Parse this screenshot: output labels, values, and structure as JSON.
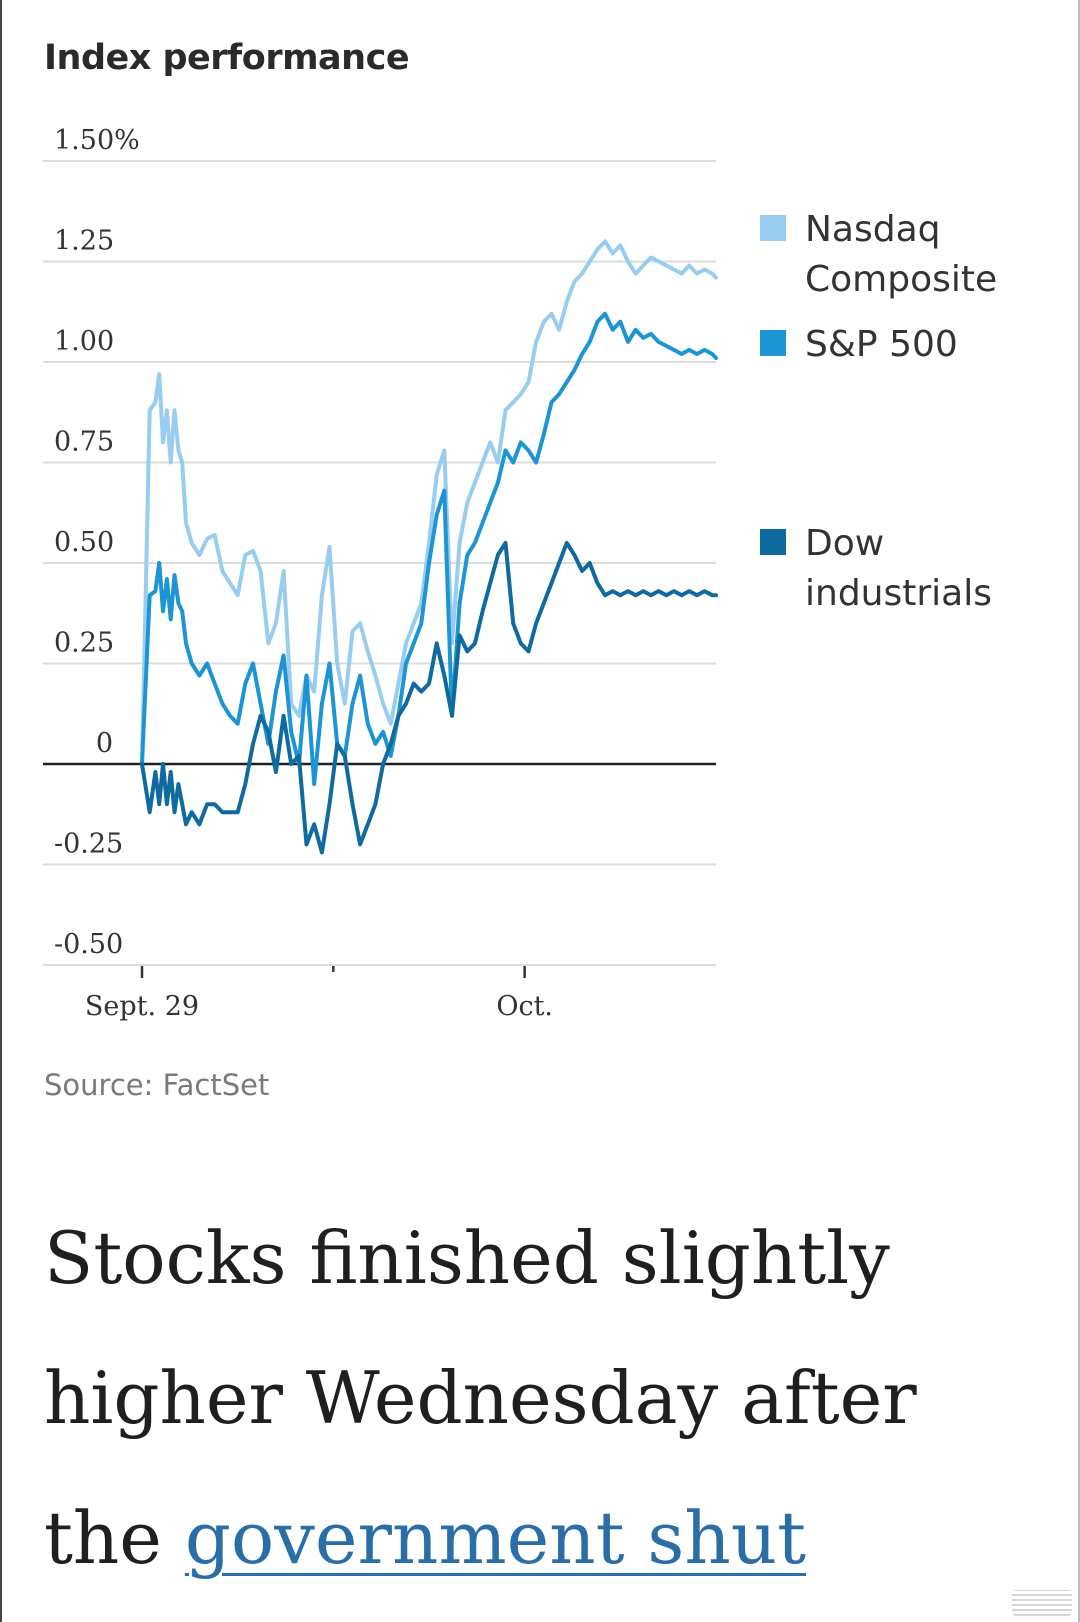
{
  "page": {
    "source": "Source: FactSet",
    "headline_pre": "Stocks finished slightly higher Wednesday after the ",
    "headline_link": "government shut"
  },
  "chart_data": {
    "type": "line",
    "title": "Index performance",
    "y_tick_labels": [
      "1.50%",
      "1.25",
      "1.00",
      "0.75",
      "0.50",
      "0.25",
      "0",
      "-0.25",
      "-0.50"
    ],
    "y_ticks": [
      1.5,
      1.25,
      1.0,
      0.75,
      0.5,
      0.25,
      0,
      -0.25,
      -0.5
    ],
    "ylim": [
      -0.5,
      1.5
    ],
    "xlim": [
      0,
      1.5
    ],
    "x_ticks": [
      {
        "label": "Sept. 29",
        "x": 0
      },
      {
        "label": "",
        "x": 0.5
      },
      {
        "label": "Oct.",
        "x": 1.0
      }
    ],
    "xlabel": "",
    "ylabel": "",
    "legend_position": "right",
    "series": [
      {
        "name": "Nasdaq Composite",
        "legend_label": [
          "Nasdaq",
          "Composite"
        ],
        "color": "#99cdef",
        "x": [
          0,
          0.02,
          0.035,
          0.045,
          0.055,
          0.065,
          0.075,
          0.085,
          0.095,
          0.105,
          0.115,
          0.13,
          0.15,
          0.17,
          0.19,
          0.21,
          0.23,
          0.25,
          0.27,
          0.29,
          0.31,
          0.33,
          0.35,
          0.37,
          0.39,
          0.41,
          0.43,
          0.45,
          0.47,
          0.49,
          0.51,
          0.53,
          0.55,
          0.57,
          0.59,
          0.61,
          0.63,
          0.65,
          0.67,
          0.69,
          0.71,
          0.73,
          0.75,
          0.77,
          0.79,
          0.81,
          0.83,
          0.85,
          0.87,
          0.89,
          0.91,
          0.93,
          0.95,
          0.97,
          0.99,
          1.01,
          1.03,
          1.05,
          1.07,
          1.09,
          1.11,
          1.13,
          1.15,
          1.17,
          1.19,
          1.21,
          1.23,
          1.25,
          1.27,
          1.29,
          1.31,
          1.33,
          1.35,
          1.37,
          1.39,
          1.41,
          1.43,
          1.45,
          1.47,
          1.49,
          1.5
        ],
        "values": [
          0.0,
          0.88,
          0.9,
          0.97,
          0.8,
          0.88,
          0.75,
          0.88,
          0.78,
          0.75,
          0.6,
          0.55,
          0.52,
          0.56,
          0.57,
          0.48,
          0.45,
          0.42,
          0.52,
          0.53,
          0.48,
          0.3,
          0.35,
          0.48,
          0.15,
          0.12,
          0.22,
          0.18,
          0.42,
          0.54,
          0.25,
          0.15,
          0.33,
          0.35,
          0.28,
          0.22,
          0.15,
          0.1,
          0.2,
          0.3,
          0.35,
          0.4,
          0.55,
          0.72,
          0.78,
          0.3,
          0.55,
          0.65,
          0.7,
          0.75,
          0.8,
          0.75,
          0.88,
          0.9,
          0.92,
          0.95,
          1.05,
          1.1,
          1.12,
          1.08,
          1.15,
          1.2,
          1.22,
          1.25,
          1.28,
          1.3,
          1.27,
          1.29,
          1.25,
          1.22,
          1.24,
          1.26,
          1.25,
          1.24,
          1.23,
          1.22,
          1.24,
          1.22,
          1.23,
          1.22,
          1.21
        ]
      },
      {
        "name": "S&P 500",
        "legend_label": [
          "S&P 500"
        ],
        "color": "#1d95d4",
        "x": [
          0,
          0.02,
          0.035,
          0.045,
          0.055,
          0.065,
          0.075,
          0.085,
          0.095,
          0.105,
          0.115,
          0.13,
          0.15,
          0.17,
          0.19,
          0.21,
          0.23,
          0.25,
          0.27,
          0.29,
          0.31,
          0.33,
          0.35,
          0.37,
          0.39,
          0.41,
          0.43,
          0.45,
          0.47,
          0.49,
          0.51,
          0.53,
          0.55,
          0.57,
          0.59,
          0.61,
          0.63,
          0.65,
          0.67,
          0.69,
          0.71,
          0.73,
          0.75,
          0.77,
          0.79,
          0.81,
          0.83,
          0.85,
          0.87,
          0.89,
          0.91,
          0.93,
          0.95,
          0.97,
          0.99,
          1.01,
          1.03,
          1.05,
          1.07,
          1.09,
          1.11,
          1.13,
          1.15,
          1.17,
          1.19,
          1.21,
          1.23,
          1.25,
          1.27,
          1.29,
          1.31,
          1.33,
          1.35,
          1.37,
          1.39,
          1.41,
          1.43,
          1.45,
          1.47,
          1.49,
          1.5
        ],
        "values": [
          0.0,
          0.42,
          0.43,
          0.5,
          0.38,
          0.46,
          0.36,
          0.47,
          0.4,
          0.38,
          0.3,
          0.25,
          0.22,
          0.25,
          0.2,
          0.15,
          0.12,
          0.1,
          0.2,
          0.25,
          0.15,
          0.05,
          0.18,
          0.27,
          0.08,
          0.0,
          0.22,
          -0.05,
          0.15,
          0.25,
          0.05,
          0.02,
          0.15,
          0.22,
          0.1,
          0.05,
          0.08,
          0.02,
          0.12,
          0.25,
          0.3,
          0.35,
          0.5,
          0.62,
          0.68,
          0.12,
          0.4,
          0.52,
          0.55,
          0.6,
          0.65,
          0.7,
          0.78,
          0.75,
          0.8,
          0.78,
          0.75,
          0.82,
          0.9,
          0.92,
          0.95,
          0.98,
          1.02,
          1.05,
          1.1,
          1.12,
          1.08,
          1.1,
          1.05,
          1.08,
          1.06,
          1.07,
          1.05,
          1.04,
          1.03,
          1.02,
          1.03,
          1.02,
          1.03,
          1.02,
          1.01
        ]
      },
      {
        "name": "Dow industrials",
        "legend_label": [
          "Dow",
          "industrials"
        ],
        "color": "#0f6aa0",
        "x": [
          0,
          0.02,
          0.035,
          0.045,
          0.055,
          0.065,
          0.075,
          0.085,
          0.095,
          0.105,
          0.115,
          0.13,
          0.15,
          0.17,
          0.19,
          0.21,
          0.23,
          0.25,
          0.27,
          0.29,
          0.31,
          0.33,
          0.35,
          0.37,
          0.39,
          0.41,
          0.43,
          0.45,
          0.47,
          0.49,
          0.51,
          0.53,
          0.55,
          0.57,
          0.59,
          0.61,
          0.63,
          0.65,
          0.67,
          0.69,
          0.71,
          0.73,
          0.75,
          0.77,
          0.79,
          0.81,
          0.83,
          0.85,
          0.87,
          0.89,
          0.91,
          0.93,
          0.95,
          0.97,
          0.99,
          1.01,
          1.03,
          1.05,
          1.07,
          1.09,
          1.11,
          1.13,
          1.15,
          1.17,
          1.19,
          1.21,
          1.23,
          1.25,
          1.27,
          1.29,
          1.31,
          1.33,
          1.35,
          1.37,
          1.39,
          1.41,
          1.43,
          1.45,
          1.47,
          1.49,
          1.5
        ],
        "values": [
          0.0,
          -0.12,
          -0.02,
          -0.1,
          0.0,
          -0.1,
          -0.02,
          -0.12,
          -0.05,
          -0.1,
          -0.15,
          -0.12,
          -0.15,
          -0.1,
          -0.1,
          -0.12,
          -0.12,
          -0.12,
          -0.05,
          0.05,
          0.12,
          0.08,
          -0.02,
          0.12,
          0.0,
          0.02,
          -0.2,
          -0.15,
          -0.22,
          -0.1,
          0.05,
          0.02,
          -0.1,
          -0.2,
          -0.15,
          -0.1,
          0.0,
          0.05,
          0.12,
          0.15,
          0.2,
          0.18,
          0.2,
          0.3,
          0.22,
          0.12,
          0.32,
          0.28,
          0.3,
          0.38,
          0.45,
          0.52,
          0.55,
          0.35,
          0.3,
          0.28,
          0.35,
          0.4,
          0.45,
          0.5,
          0.55,
          0.52,
          0.48,
          0.5,
          0.45,
          0.42,
          0.43,
          0.42,
          0.43,
          0.42,
          0.43,
          0.42,
          0.43,
          0.42,
          0.43,
          0.42,
          0.43,
          0.42,
          0.43,
          0.42,
          0.42
        ]
      }
    ]
  }
}
